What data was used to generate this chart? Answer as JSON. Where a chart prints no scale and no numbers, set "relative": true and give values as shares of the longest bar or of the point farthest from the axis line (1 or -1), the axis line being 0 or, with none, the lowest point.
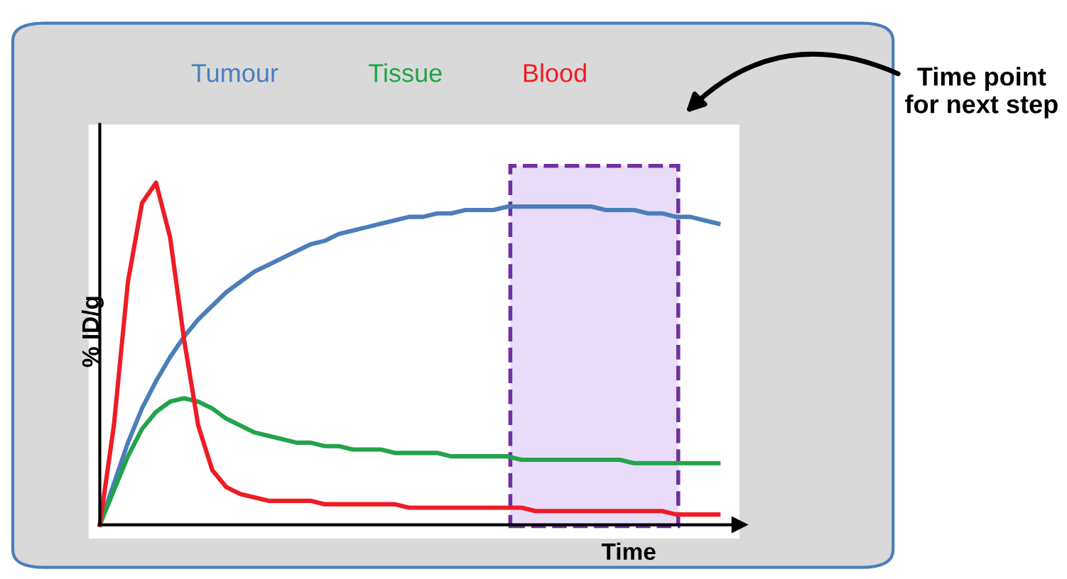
{
  "chart_data": {
    "type": "line",
    "relative": true,
    "xlabel": "Time",
    "ylabel": "% ID/g",
    "categories": [
      null,
      null,
      null,
      null,
      null,
      null,
      null,
      null,
      null,
      null,
      null,
      null,
      null,
      null,
      null,
      null,
      null,
      null,
      null,
      null,
      null,
      null,
      null,
      null,
      null,
      null,
      null,
      null,
      null,
      null,
      null,
      null,
      null,
      null,
      null,
      null,
      null,
      null,
      null,
      null,
      null,
      null,
      null,
      null,
      null
    ],
    "series": [
      {
        "name": "Tumour",
        "color": "#4a7ebb",
        "values": [
          0,
          0.12,
          0.24,
          0.34,
          0.42,
          0.49,
          0.55,
          0.6,
          0.64,
          0.68,
          0.71,
          0.74,
          0.76,
          0.78,
          0.8,
          0.82,
          0.83,
          0.85,
          0.86,
          0.87,
          0.88,
          0.89,
          0.9,
          0.9,
          0.91,
          0.91,
          0.92,
          0.92,
          0.92,
          0.93,
          0.93,
          0.93,
          0.93,
          0.93,
          0.93,
          0.93,
          0.92,
          0.92,
          0.92,
          0.91,
          0.91,
          0.9,
          0.9,
          0.89,
          0.88
        ]
      },
      {
        "name": "Tissue",
        "color": "#22a34a",
        "values": [
          0,
          0.1,
          0.2,
          0.28,
          0.33,
          0.36,
          0.37,
          0.36,
          0.34,
          0.31,
          0.29,
          0.27,
          0.26,
          0.25,
          0.24,
          0.24,
          0.23,
          0.23,
          0.22,
          0.22,
          0.22,
          0.21,
          0.21,
          0.21,
          0.21,
          0.2,
          0.2,
          0.2,
          0.2,
          0.2,
          0.19,
          0.19,
          0.19,
          0.19,
          0.19,
          0.19,
          0.19,
          0.19,
          0.18,
          0.18,
          0.18,
          0.18,
          0.18,
          0.18,
          0.18
        ]
      },
      {
        "name": "Blood",
        "color": "#ee1c25",
        "values": [
          0,
          0.29,
          0.71,
          0.94,
          1,
          0.84,
          0.54,
          0.29,
          0.16,
          0.11,
          0.09,
          0.08,
          0.07,
          0.07,
          0.07,
          0.07,
          0.06,
          0.06,
          0.06,
          0.06,
          0.06,
          0.06,
          0.05,
          0.05,
          0.05,
          0.05,
          0.05,
          0.05,
          0.05,
          0.05,
          0.05,
          0.04,
          0.04,
          0.04,
          0.04,
          0.04,
          0.04,
          0.04,
          0.04,
          0.04,
          0.04,
          0.03,
          0.03,
          0.03,
          0.03
        ]
      }
    ],
    "annotations": [
      "Time point for next step"
    ],
    "legend": false
  }
}
